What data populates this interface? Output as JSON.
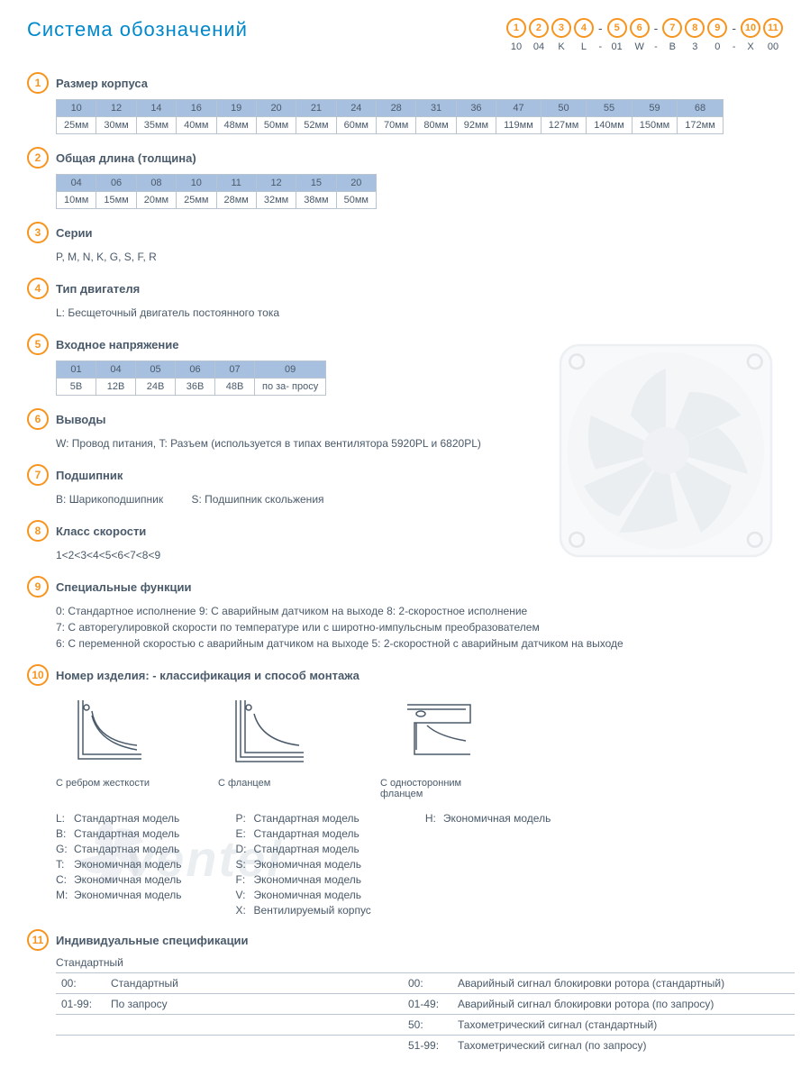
{
  "title": "Система обозначений",
  "colors": {
    "accent_orange": "#f7941d",
    "title_blue": "#0088cc",
    "text": "#4a5a6a",
    "border": "#b8c4d0",
    "header_bg": "#a8c0e0"
  },
  "fonts": {
    "title_size": 22,
    "section_title_size": 13,
    "body_size": 12,
    "table_size": 11
  },
  "code_example": [
    {
      "n": "1",
      "v": "10"
    },
    {
      "n": "2",
      "v": "04"
    },
    {
      "n": "3",
      "v": "K"
    },
    {
      "n": "4",
      "v": "L"
    },
    {
      "dash": true
    },
    {
      "n": "5",
      "v": "01"
    },
    {
      "n": "6",
      "v": "W"
    },
    {
      "dash": true
    },
    {
      "n": "7",
      "v": "B"
    },
    {
      "n": "8",
      "v": "3"
    },
    {
      "n": "9",
      "v": "0"
    },
    {
      "dash": true
    },
    {
      "n": "10",
      "v": "X"
    },
    {
      "n": "11",
      "v": "00"
    }
  ],
  "s1": {
    "num": "1",
    "title": "Размер корпуса",
    "codes": [
      "10",
      "12",
      "14",
      "16",
      "19",
      "20",
      "21",
      "24",
      "28",
      "31",
      "36",
      "47",
      "50",
      "55",
      "59",
      "68"
    ],
    "vals": [
      "25мм",
      "30мм",
      "35мм",
      "40мм",
      "48мм",
      "50мм",
      "52мм",
      "60мм",
      "70мм",
      "80мм",
      "92мм",
      "119мм",
      "127мм",
      "140мм",
      "150мм",
      "172мм"
    ]
  },
  "s2": {
    "num": "2",
    "title": "Общая длина (толщина)",
    "codes": [
      "04",
      "06",
      "08",
      "10",
      "11",
      "12",
      "15",
      "20"
    ],
    "vals": [
      "10мм",
      "15мм",
      "20мм",
      "25мм",
      "28мм",
      "32мм",
      "38мм",
      "50мм"
    ]
  },
  "s3": {
    "num": "3",
    "title": "Серии",
    "text": "P, M, N, K, G, S, F, R"
  },
  "s4": {
    "num": "4",
    "title": "Тип двигателя",
    "text": "L: Бесщеточный двигатель постоянного тока"
  },
  "s5": {
    "num": "5",
    "title": "Входное напряжение",
    "codes": [
      "01",
      "04",
      "05",
      "06",
      "07",
      "09"
    ],
    "vals": [
      "5В",
      "12В",
      "24В",
      "36В",
      "48В",
      "по за-\nпросу"
    ]
  },
  "s6": {
    "num": "6",
    "title": "Выводы",
    "text": "W: Провод питания, T: Разъем (используется в типах вентилятора  5920PL и 6820PL)"
  },
  "s7": {
    "num": "7",
    "title": "Подшипник",
    "pair1_k": "B:",
    "pair1_v": "Шарикоподшипник",
    "pair2_k": "S:",
    "pair2_v": "Подшипник скольжения"
  },
  "s8": {
    "num": "8",
    "title": "Класс скорости",
    "text": "1<2<3<4<5<6<7<8<9"
  },
  "s9": {
    "num": "9",
    "title": "Специальные функции",
    "line1": "0: Стандартное исполнение   9:  С аварийным датчиком на выходе   8: 2-скоростное исполнение",
    "line2": "7: С авторегулировкой скорости по температуре или с широтно-импульсным преобразователем",
    "line3": "6: С переменной скоростью с аварийным датчиком на выходе   5: 2-скоростной с аварийным датчиком на выходе"
  },
  "s10": {
    "num": "10",
    "title": "Номер изделия: - классификация  и способ монтажа",
    "mounts": [
      {
        "label": "С ребром\nжесткости"
      },
      {
        "label": "С фланцем"
      },
      {
        "label": "С односторонним\nфланцем"
      }
    ],
    "col1": [
      {
        "k": "L:",
        "v": "Стандартная модель"
      },
      {
        "k": "B:",
        "v": "Стандартная модель"
      },
      {
        "k": "G:",
        "v": "Стандартная модель"
      },
      {
        "k": "T:",
        "v": "Экономичная модель"
      },
      {
        "k": "C:",
        "v": "Экономичная модель"
      },
      {
        "k": "M:",
        "v": "Экономичная модель"
      }
    ],
    "col2": [
      {
        "k": "P:",
        "v": "Стандартная модель"
      },
      {
        "k": "E:",
        "v": "Стандартная модель"
      },
      {
        "k": "D:",
        "v": "Стандартная модель"
      },
      {
        "k": "S:",
        "v": "Экономичная модель"
      },
      {
        "k": "F:",
        "v": "Экономичная модель"
      },
      {
        "k": "V:",
        "v": "Экономичная модель"
      },
      {
        "k": "X:",
        "v": "Вентилируемый корпус"
      }
    ],
    "col3": [
      {
        "k": "H:",
        "v": "Экономичная модель"
      }
    ]
  },
  "s11": {
    "num": "11",
    "title": "Индивидуальные спецификации",
    "sub": "Стандартный",
    "left": [
      {
        "k": "00:",
        "v": "Стандартный"
      },
      {
        "k": "01-99:",
        "v": "По запросу"
      }
    ],
    "right": [
      {
        "k": "00:",
        "v": "Аварийный сигнал блокировки ротора (стандартный)"
      },
      {
        "k": "01-49:",
        "v": "Аварийный сигнал блокировки ротора (по запросу)"
      },
      {
        "k": "50:",
        "v": "Тахометрический сигнал (стандартный)"
      },
      {
        "k": "51-99:",
        "v": "Тахометрический сигнал (по запросу)"
      }
    ]
  },
  "watermark": "ventel"
}
